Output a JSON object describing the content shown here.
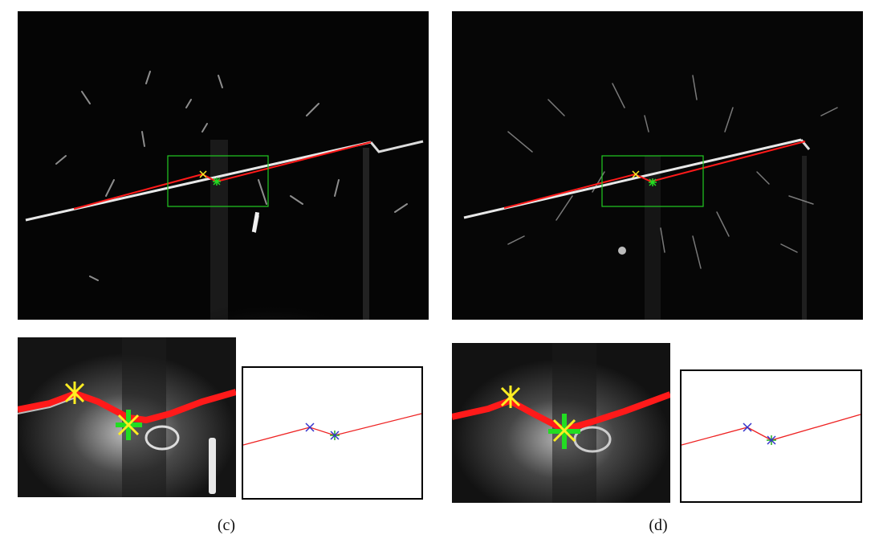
{
  "figure": {
    "panels": [
      {
        "id": "c",
        "caption": "(c)"
      },
      {
        "id": "d",
        "caption": "(d)"
      }
    ],
    "colors": {
      "seam_line": "#ff1a1a",
      "roi_box": "#22cc22",
      "left_marker": "#ffee22",
      "right_marker": "#22dd22",
      "plot_left_marker": "#3333cc",
      "background_dark": "#0a0a0a"
    }
  }
}
